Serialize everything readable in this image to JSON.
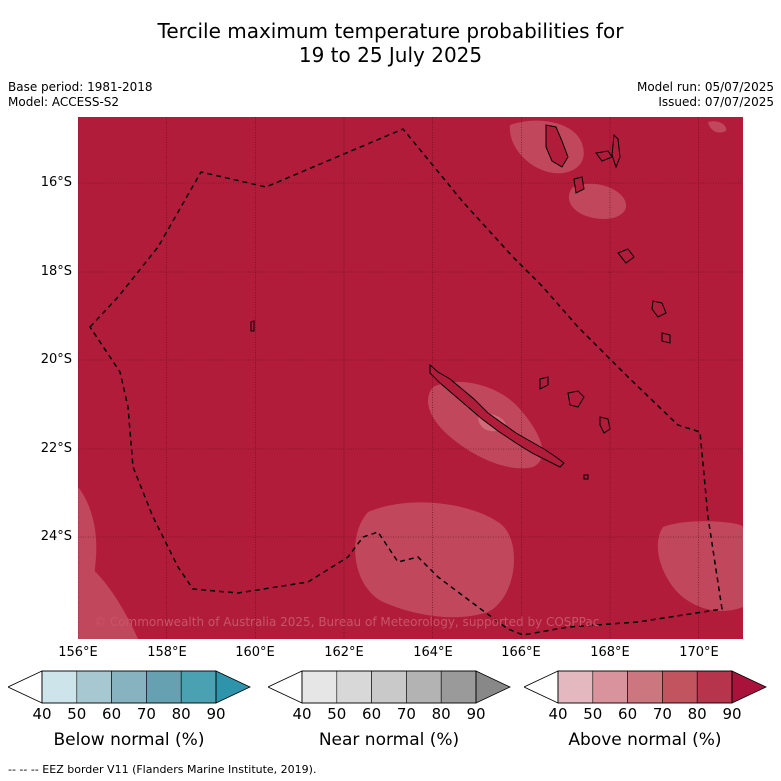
{
  "header": {
    "title_line1": "Tercile maximum temperature probabilities for",
    "title_line2": "19 to 25 July 2025",
    "base_period": "Base period: 1981-2018",
    "model": "Model: ACCESS-S2",
    "model_run": "Model run: 05/07/2025",
    "issued": "Issued: 07/07/2025"
  },
  "map": {
    "lat_labels": [
      "16°S",
      "18°S",
      "20°S",
      "22°S",
      "24°S"
    ],
    "lon_labels": [
      "156°E",
      "158°E",
      "160°E",
      "162°E",
      "164°E",
      "166°E",
      "168°E",
      "170°E"
    ],
    "copyright": "© Commonwealth of Australia 2025, Bureau of Meteorology, supported by COSPPac",
    "dominant_category": "Above normal",
    "dominant_probability_range": "80-90",
    "colors": {
      "above_80_90": "#b11c3b",
      "above_70_80": "#c1485c",
      "above_60_70": "#d47c85",
      "coast": "#000000"
    }
  },
  "legend": {
    "ticks": [
      "40",
      "50",
      "60",
      "70",
      "80",
      "90"
    ],
    "below_label": "Below normal (%)",
    "near_label": "Near normal (%)",
    "above_label": "Above normal (%)",
    "below_colors": [
      "#cde4ea",
      "#a7c8d0",
      "#86b3bf",
      "#65a1b0",
      "#4aa1b1",
      "#2e94ab"
    ],
    "near_colors": [
      "#e6e6e6",
      "#d8d8d8",
      "#c9c9c9",
      "#b3b3b3",
      "#9a9a9a",
      "#888888"
    ],
    "above_colors": [
      "#e4b8bf",
      "#d9939c",
      "#cc7680",
      "#c1545f",
      "#b7354c",
      "#a9123a"
    ]
  },
  "footer": {
    "eez_note": "--  --  -- EEZ border V11 (Flanders Marine Institute, 2019)."
  }
}
